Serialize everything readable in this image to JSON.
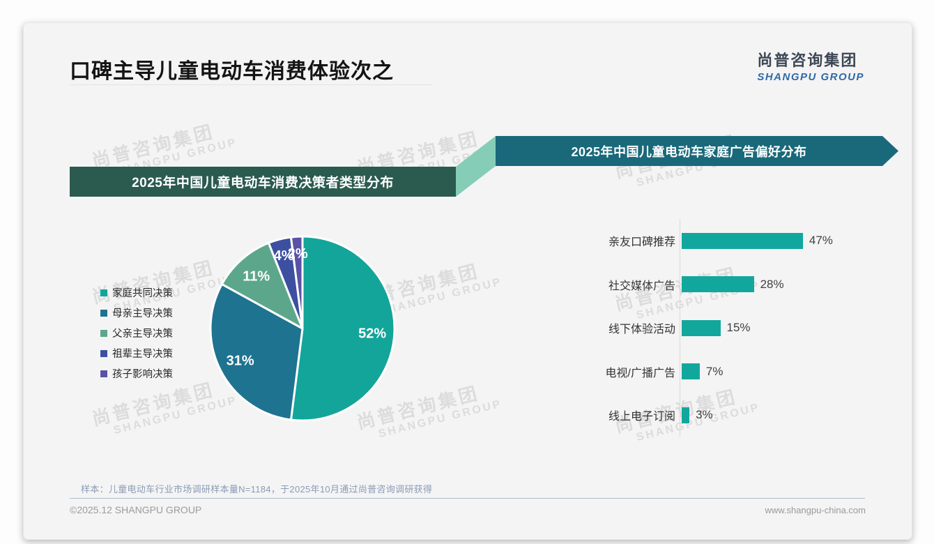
{
  "page": {
    "title": "口碑主导儿童电动车消费体验次之",
    "logo": {
      "cn": "尚普咨询集团",
      "en": "SHANGPU GROUP"
    },
    "watermark": {
      "line1": "尚普咨询集团",
      "line2": "SHANGPU GROUP"
    },
    "footer": {
      "sample_note": "样本：儿童电动车行业市场调研样本量N=1184，于2025年10月通过尚普咨询调研获得",
      "copyright": "©2025.12 SHANGPU GROUP",
      "website": "www.shangpu-china.com"
    }
  },
  "colors": {
    "card_bg": "#f4f4f5",
    "left_banner": "#2a5b4e",
    "right_banner": "#19697a",
    "connector": "#85cdb6",
    "watermark": "#d8d8d9",
    "pie_stroke": "#ffffff"
  },
  "chart_data": [
    {
      "type": "pie",
      "title": "2025年中国儿童电动车消费决策者类型分布",
      "labels": [
        "家庭共同决策",
        "母亲主导决策",
        "父亲主导决策",
        "祖辈主导决策",
        "孩子影响决策"
      ],
      "values": [
        52,
        31,
        11,
        4,
        2
      ],
      "unit": "%",
      "data_labels": [
        "52%",
        "31%",
        "11%",
        "4%",
        "2%"
      ],
      "colors": [
        "#13a59a",
        "#1e7390",
        "#5ca78c",
        "#3c4fa0",
        "#5952a6"
      ],
      "legend_position": "left",
      "start_angle": "top",
      "direction": "clockwise"
    },
    {
      "type": "bar",
      "orientation": "horizontal",
      "title": "2025年中国儿童电动车家庭广告偏好分布",
      "categories": [
        "亲友口碑推荐",
        "社交媒体广告",
        "线下体验活动",
        "电视/广播广告",
        "线上电子订阅"
      ],
      "values": [
        47,
        28,
        15,
        7,
        3
      ],
      "unit": "%",
      "data_labels": [
        "47%",
        "28%",
        "15%",
        "7%",
        "3%"
      ],
      "bar_color": "#12a79d",
      "xlim": [
        0,
        50
      ],
      "grid": false,
      "value_label_position": "end"
    }
  ]
}
